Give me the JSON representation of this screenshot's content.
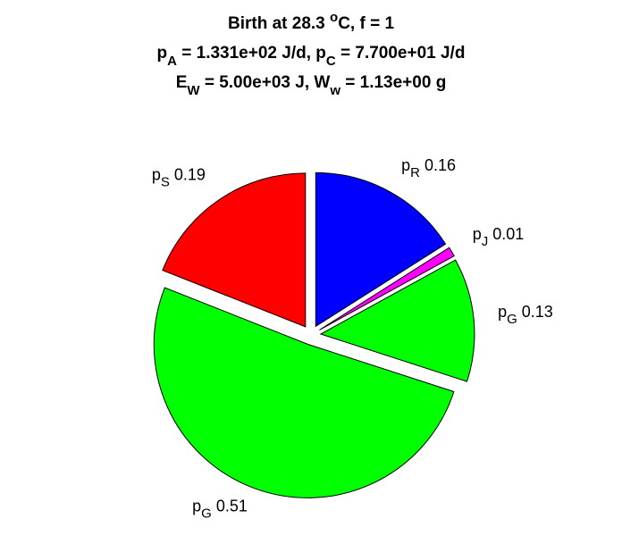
{
  "chart_data": {
    "type": "pie",
    "title": [
      [
        {
          "t": "Birth at 28.3 "
        },
        {
          "t": "o",
          "pos": "sup"
        },
        {
          "t": "C, f = 1"
        }
      ],
      [
        {
          "t": "p"
        },
        {
          "t": "A",
          "pos": "sub"
        },
        {
          "t": " = 1.331e+02 J/d, p"
        },
        {
          "t": "C",
          "pos": "sub"
        },
        {
          "t": " = 7.700e+01 J/d"
        }
      ],
      [
        {
          "t": "E"
        },
        {
          "t": "W",
          "pos": "sub"
        },
        {
          "t": " = 5.00e+03 J, W"
        },
        {
          "t": "w",
          "pos": "sub"
        },
        {
          "t": " = 1.13e+00 g"
        }
      ]
    ],
    "categories": [
      {
        "symbol": "p",
        "subscript": "R"
      },
      {
        "symbol": "p",
        "subscript": "J"
      },
      {
        "symbol": "p",
        "subscript": "G"
      },
      {
        "symbol": "p",
        "subscript": "G"
      },
      {
        "symbol": "p",
        "subscript": "S"
      }
    ],
    "values": [
      0.16,
      0.01,
      0.13,
      0.51,
      0.19
    ],
    "colors": [
      "#0000ff",
      "#ff00ff",
      "#00ff00",
      "#00ff00",
      "#ff0000"
    ],
    "exploded": true
  }
}
